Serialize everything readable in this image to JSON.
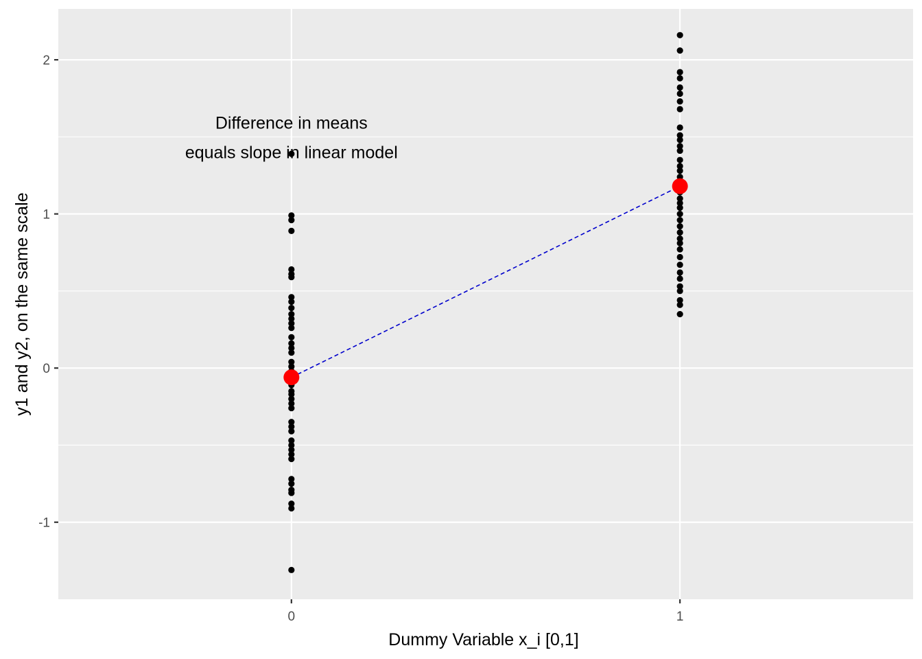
{
  "chart_data": {
    "type": "scatter",
    "xlabel": "Dummy Variable x_i  [0,1]",
    "ylabel": "y1 and y2, on the same scale",
    "x_ticks": [
      "0",
      "1"
    ],
    "y_ticks": [
      -1,
      0,
      1,
      2
    ],
    "y_tick_labels": [
      "-1",
      "0",
      "1",
      "2"
    ],
    "xlim": [
      -0.6,
      1.6
    ],
    "ylim": [
      -1.5,
      2.33
    ],
    "grid": true,
    "legend": "none",
    "annotation": {
      "lines": [
        "Difference in means",
        "equals slope in linear model"
      ],
      "x": 0,
      "y": 1.5
    },
    "points": {
      "color": "#000000",
      "group0": [
        1.39,
        0.99,
        0.96,
        0.89,
        0.64,
        0.61,
        0.59,
        0.46,
        0.43,
        0.39,
        0.35,
        0.32,
        0.29,
        0.26,
        0.2,
        0.16,
        0.13,
        0.1,
        0.04,
        0.01,
        -0.02,
        -0.05,
        -0.08,
        -0.11,
        -0.15,
        -0.17,
        -0.2,
        -0.23,
        -0.26,
        -0.35,
        -0.38,
        -0.41,
        -0.47,
        -0.5,
        -0.53,
        -0.56,
        -0.59,
        -0.72,
        -0.75,
        -0.79,
        -0.81,
        -0.88,
        -0.91,
        -1.31
      ],
      "group1": [
        2.16,
        2.06,
        1.92,
        1.88,
        1.82,
        1.78,
        1.73,
        1.68,
        1.56,
        1.51,
        1.48,
        1.44,
        1.41,
        1.35,
        1.31,
        1.28,
        1.24,
        1.2,
        1.17,
        1.14,
        1.1,
        1.07,
        1.04,
        1.0,
        0.96,
        0.92,
        0.88,
        0.84,
        0.81,
        0.77,
        0.72,
        0.67,
        0.62,
        0.58,
        0.53,
        0.5,
        0.44,
        0.41,
        0.35
      ]
    },
    "means": {
      "color": "#ff0000",
      "values": [
        {
          "x": 0,
          "y": -0.06
        },
        {
          "x": 1,
          "y": 1.18
        }
      ]
    },
    "fit_line": {
      "color": "#0000cc",
      "style": "dashed",
      "from": {
        "x": 0,
        "y": -0.06
      },
      "to": {
        "x": 1,
        "y": 1.18
      }
    },
    "colors": {
      "panel": "#ebebeb",
      "grid": "#ffffff",
      "tick_label": "#4d4d4d"
    }
  }
}
